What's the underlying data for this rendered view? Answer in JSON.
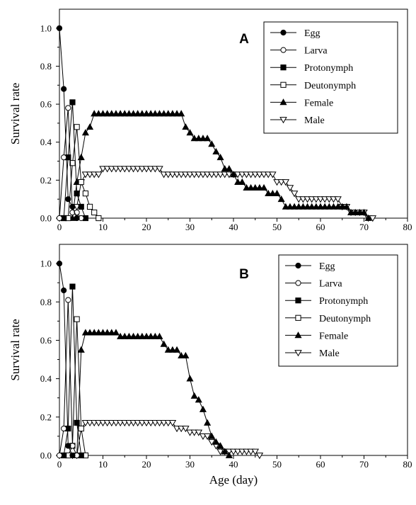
{
  "chart_data": [
    {
      "type": "line",
      "panel_label": "A",
      "xlabel": "",
      "ylabel": "Survival rate",
      "xlim": [
        0,
        80
      ],
      "ylim": [
        0,
        1.1
      ],
      "x_ticks": [
        "0",
        "10",
        "20",
        "30",
        "40",
        "50",
        "60",
        "70",
        "80"
      ],
      "y_ticks": [
        "0.0",
        "0.2",
        "0.4",
        "0.6",
        "0.8",
        "1.0"
      ],
      "legend_position": "top-right",
      "series": [
        {
          "name": "Egg",
          "marker": "circle-filled",
          "x": [
            0,
            1,
            2,
            3,
            4
          ],
          "y": [
            1.0,
            0.68,
            0.1,
            0.06,
            0.0
          ]
        },
        {
          "name": "Larva",
          "marker": "circle-open",
          "x": [
            0,
            1,
            2,
            3,
            4,
            5
          ],
          "y": [
            0.0,
            0.32,
            0.58,
            0.03,
            0.03,
            0.0
          ]
        },
        {
          "name": "Protonymph",
          "marker": "square-filled",
          "x": [
            1,
            2,
            3,
            4,
            5,
            6
          ],
          "y": [
            0.0,
            0.32,
            0.61,
            0.13,
            0.06,
            0.0
          ]
        },
        {
          "name": "Deutonymph",
          "marker": "square-open",
          "x": [
            1,
            2,
            3,
            4,
            5,
            6,
            7,
            8,
            9
          ],
          "y": [
            0.0,
            0.0,
            0.29,
            0.48,
            0.19,
            0.13,
            0.06,
            0.03,
            0.0
          ]
        },
        {
          "name": "Female",
          "marker": "triangle-up-filled",
          "x": [
            3,
            4,
            5,
            6,
            7,
            8,
            9,
            10,
            11,
            12,
            13,
            14,
            15,
            16,
            17,
            18,
            19,
            20,
            21,
            22,
            23,
            24,
            25,
            26,
            27,
            28,
            29,
            30,
            31,
            32,
            33,
            34,
            35,
            36,
            37,
            38,
            39,
            40,
            41,
            42,
            43,
            44,
            45,
            46,
            47,
            48,
            49,
            50,
            51,
            52,
            53,
            54,
            55,
            56,
            57,
            58,
            59,
            60,
            61,
            62,
            63,
            64,
            65,
            66,
            67,
            68,
            69,
            70,
            71
          ],
          "y": [
            0.0,
            0.19,
            0.32,
            0.45,
            0.48,
            0.55,
            0.55,
            0.55,
            0.55,
            0.55,
            0.55,
            0.55,
            0.55,
            0.55,
            0.55,
            0.55,
            0.55,
            0.55,
            0.55,
            0.55,
            0.55,
            0.55,
            0.55,
            0.55,
            0.55,
            0.55,
            0.48,
            0.45,
            0.42,
            0.42,
            0.42,
            0.42,
            0.39,
            0.35,
            0.32,
            0.26,
            0.26,
            0.23,
            0.19,
            0.19,
            0.16,
            0.16,
            0.16,
            0.16,
            0.16,
            0.13,
            0.13,
            0.13,
            0.1,
            0.06,
            0.06,
            0.06,
            0.06,
            0.06,
            0.06,
            0.06,
            0.06,
            0.06,
            0.06,
            0.06,
            0.06,
            0.06,
            0.06,
            0.06,
            0.03,
            0.03,
            0.03,
            0.03,
            0.0
          ]
        },
        {
          "name": "Male",
          "marker": "triangle-down-open",
          "x": [
            4,
            5,
            6,
            7,
            8,
            9,
            10,
            11,
            12,
            13,
            14,
            15,
            16,
            17,
            18,
            19,
            20,
            21,
            22,
            23,
            24,
            25,
            26,
            27,
            28,
            29,
            30,
            31,
            32,
            33,
            34,
            35,
            36,
            37,
            38,
            39,
            40,
            41,
            42,
            43,
            44,
            45,
            46,
            47,
            48,
            49,
            50,
            51,
            52,
            53,
            54,
            55,
            56,
            57,
            58,
            59,
            60,
            61,
            62,
            63,
            64,
            65,
            66,
            67,
            68,
            69,
            70,
            71,
            72
          ],
          "y": [
            0.06,
            0.19,
            0.23,
            0.23,
            0.23,
            0.23,
            0.26,
            0.26,
            0.26,
            0.26,
            0.26,
            0.26,
            0.26,
            0.26,
            0.26,
            0.26,
            0.26,
            0.26,
            0.26,
            0.26,
            0.23,
            0.23,
            0.23,
            0.23,
            0.23,
            0.23,
            0.23,
            0.23,
            0.23,
            0.23,
            0.23,
            0.23,
            0.23,
            0.23,
            0.23,
            0.23,
            0.23,
            0.23,
            0.23,
            0.23,
            0.23,
            0.23,
            0.23,
            0.23,
            0.23,
            0.23,
            0.19,
            0.19,
            0.19,
            0.16,
            0.13,
            0.1,
            0.1,
            0.1,
            0.1,
            0.1,
            0.1,
            0.1,
            0.1,
            0.1,
            0.1,
            0.06,
            0.06,
            0.03,
            0.03,
            0.03,
            0.03,
            0.0,
            0.0
          ]
        }
      ]
    },
    {
      "type": "line",
      "panel_label": "B",
      "xlabel": "Age (day)",
      "ylabel": "Survival rate",
      "xlim": [
        0,
        80
      ],
      "ylim": [
        0,
        1.1
      ],
      "x_ticks": [
        "0",
        "10",
        "20",
        "30",
        "40",
        "50",
        "60",
        "70",
        "80"
      ],
      "y_ticks": [
        "0.0",
        "0.2",
        "0.4",
        "0.6",
        "0.8",
        "1.0"
      ],
      "legend_position": "top-right",
      "series": [
        {
          "name": "Egg",
          "marker": "circle-filled",
          "x": [
            0,
            1,
            2,
            3
          ],
          "y": [
            1.0,
            0.86,
            0.05,
            0.0
          ]
        },
        {
          "name": "Larva",
          "marker": "circle-open",
          "x": [
            0,
            1,
            2,
            3,
            4
          ],
          "y": [
            0.0,
            0.14,
            0.81,
            0.05,
            0.0
          ]
        },
        {
          "name": "Protonymph",
          "marker": "square-filled",
          "x": [
            1,
            2,
            3,
            4,
            5
          ],
          "y": [
            0.0,
            0.14,
            0.88,
            0.17,
            0.0
          ]
        },
        {
          "name": "Deutonymph",
          "marker": "square-open",
          "x": [
            2,
            3,
            4,
            5,
            6
          ],
          "y": [
            0.0,
            0.05,
            0.71,
            0.14,
            0.0
          ]
        },
        {
          "name": "Female",
          "marker": "triangle-up-filled",
          "x": [
            4,
            5,
            6,
            7,
            8,
            9,
            10,
            11,
            12,
            13,
            14,
            15,
            16,
            17,
            18,
            19,
            20,
            21,
            22,
            23,
            24,
            25,
            26,
            27,
            28,
            29,
            30,
            31,
            32,
            33,
            34,
            35,
            36,
            37,
            38,
            39
          ],
          "y": [
            0.0,
            0.55,
            0.64,
            0.64,
            0.64,
            0.64,
            0.64,
            0.64,
            0.64,
            0.64,
            0.62,
            0.62,
            0.62,
            0.62,
            0.62,
            0.62,
            0.62,
            0.62,
            0.62,
            0.62,
            0.58,
            0.55,
            0.55,
            0.55,
            0.52,
            0.52,
            0.4,
            0.31,
            0.29,
            0.24,
            0.17,
            0.1,
            0.07,
            0.05,
            0.02,
            0.0
          ]
        },
        {
          "name": "Male",
          "marker": "triangle-down-open",
          "x": [
            3,
            4,
            5,
            6,
            7,
            8,
            9,
            10,
            11,
            12,
            13,
            14,
            15,
            16,
            17,
            18,
            19,
            20,
            21,
            22,
            23,
            24,
            25,
            26,
            27,
            28,
            29,
            30,
            31,
            32,
            33,
            34,
            35,
            36,
            37,
            38,
            39,
            40,
            41,
            42,
            43,
            44,
            45,
            46
          ],
          "y": [
            0.0,
            0.0,
            0.14,
            0.17,
            0.17,
            0.17,
            0.17,
            0.17,
            0.17,
            0.17,
            0.17,
            0.17,
            0.17,
            0.17,
            0.17,
            0.17,
            0.17,
            0.17,
            0.17,
            0.17,
            0.17,
            0.17,
            0.17,
            0.17,
            0.14,
            0.14,
            0.14,
            0.12,
            0.12,
            0.12,
            0.1,
            0.1,
            0.07,
            0.05,
            0.02,
            0.02,
            0.02,
            0.02,
            0.02,
            0.02,
            0.02,
            0.02,
            0.02,
            0.0
          ]
        }
      ]
    }
  ]
}
